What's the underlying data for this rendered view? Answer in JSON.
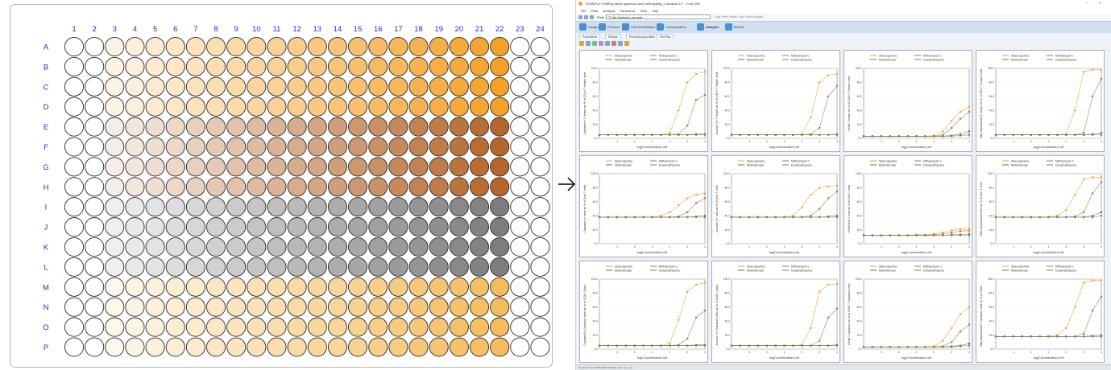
{
  "plate": {
    "columns": [
      "1",
      "2",
      "3",
      "4",
      "5",
      "6",
      "7",
      "8",
      "9",
      "10",
      "11",
      "12",
      "13",
      "14",
      "15",
      "16",
      "17",
      "18",
      "19",
      "20",
      "21",
      "22",
      "23",
      "24"
    ],
    "rows": [
      "A",
      "B",
      "C",
      "D",
      "E",
      "F",
      "G",
      "H",
      "I",
      "J",
      "K",
      "L",
      "M",
      "N",
      "O",
      "P"
    ],
    "blocks": [
      {
        "rows": [
          0,
          3
        ],
        "color": "#f4a128"
      },
      {
        "rows": [
          4,
          7
        ],
        "color": "#b5662b"
      },
      {
        "rows": [
          8,
          11
        ],
        "color": "#7d7d7d"
      },
      {
        "rows": [
          12,
          15
        ],
        "color": "#f4bc5c"
      }
    ],
    "filled_columns": [
      2,
      21
    ]
  },
  "arrow_symbol": "→",
  "app": {
    "title": "EXAMPLE Profiling alpha apoptosis and phenotyping_2 Analysis 11* - ForeCyt®",
    "window_controls": "– □",
    "menu": [
      "File",
      "Plate",
      "Analysis",
      "Panorama",
      "Tools",
      "Help"
    ],
    "plate_label": "Plate",
    "plate_value": "T-Cells treatment_my.mask",
    "plate_links": "Copy Plate Design  Copy Plate Analysis",
    "ribbon": [
      {
        "label": "Design",
        "active": false
      },
      {
        "label": "Protocol",
        "active": false
      },
      {
        "label": "Cell Identification",
        "active": false
      },
      {
        "label": "Compensation",
        "active": false
      },
      {
        "label": "Analysis",
        "active": true
      },
      {
        "label": "Metrics",
        "active": false
      }
    ],
    "subtabs": [
      "Populations",
      "Results",
      "Phenotyping profiles",
      "Plot Reg"
    ],
    "status": "ProcessTimes 1000ms(MN DatSet)    User: my_user"
  },
  "chart_data": {
    "type": "line",
    "note_legend": [
      "Staurosporine",
      "Mithramycin C",
      "Methotrexate",
      "Dexamethasone"
    ],
    "series_colors": [
      "#f5a32a",
      "#c0703a",
      "#7d6a5a",
      "#6a8a50"
    ],
    "xlabel": "log(Concentration) nM",
    "x": [
      -2,
      -1.5,
      -1,
      -0.5,
      0,
      0.5,
      1,
      1.5,
      2,
      2.5,
      3,
      3.5,
      4
    ],
    "xticks": [
      "-1",
      "0",
      "1",
      "2",
      "3",
      "4"
    ],
    "ylim": [
      0,
      100
    ],
    "panels": [
      {
        "ylabel": "Caspase3+ T helper as % of CD4+ T helper cells",
        "yticks": [
          "100.0",
          "80.0",
          "60.0",
          "40.0",
          "20.0",
          "0.0"
        ],
        "series": [
          [
            5,
            5,
            5,
            5,
            5,
            5,
            5,
            5,
            8,
            40,
            80,
            92,
            95
          ],
          [
            5,
            5,
            5,
            5,
            5,
            5,
            5,
            5,
            5,
            6,
            18,
            55,
            62
          ],
          [
            5,
            5,
            5,
            5,
            5,
            5,
            5,
            5,
            5,
            5,
            5,
            6,
            6
          ],
          [
            5,
            5,
            5,
            5,
            5,
            5,
            5,
            5,
            5,
            5,
            5,
            5,
            5
          ]
        ]
      },
      {
        "ylabel": "Annexin V+ T helper as % of CD4+ T helper cells",
        "yticks": [
          "100.0",
          "80.0",
          "60.0",
          "40.0",
          "20.0",
          "0.0"
        ],
        "series": [
          [
            5,
            5,
            5,
            5,
            5,
            5,
            5,
            5,
            6,
            30,
            80,
            90,
            92
          ],
          [
            5,
            5,
            5,
            5,
            5,
            5,
            5,
            5,
            5,
            6,
            15,
            60,
            75
          ],
          [
            5,
            5,
            5,
            5,
            5,
            5,
            5,
            5,
            5,
            5,
            5,
            5,
            6
          ],
          [
            5,
            5,
            5,
            5,
            5,
            5,
            5,
            5,
            5,
            5,
            5,
            5,
            5
          ]
        ]
      },
      {
        "ylabel": "Dead T helper as % of CD4+ T helper cells",
        "yticks": [
          "100.0",
          "80.0",
          "60.0",
          "40.0",
          "20.0",
          "0.0"
        ],
        "series": [
          [
            3,
            3,
            3,
            3,
            3,
            3,
            3,
            3,
            4,
            10,
            25,
            38,
            45
          ],
          [
            3,
            3,
            3,
            3,
            3,
            3,
            3,
            3,
            3,
            5,
            15,
            28,
            38
          ],
          [
            3,
            3,
            3,
            3,
            3,
            3,
            3,
            3,
            3,
            3,
            4,
            6,
            10
          ],
          [
            3,
            3,
            3,
            3,
            3,
            3,
            3,
            3,
            3,
            3,
            3,
            4,
            5
          ]
        ]
      },
      {
        "ylabel": "Mito depolarized T helper as % of CD4+ T helper cells",
        "yticks": [
          "100.0",
          "80.0",
          "60.0",
          "40.0",
          "20.0",
          "0.0"
        ],
        "series": [
          [
            5,
            5,
            5,
            5,
            5,
            5,
            5,
            5,
            6,
            40,
            95,
            98,
            98
          ],
          [
            5,
            5,
            5,
            5,
            5,
            5,
            5,
            5,
            5,
            5,
            8,
            60,
            85
          ],
          [
            5,
            5,
            5,
            5,
            5,
            5,
            5,
            5,
            5,
            5,
            5,
            6,
            8
          ],
          [
            5,
            5,
            5,
            5,
            5,
            5,
            5,
            5,
            5,
            5,
            5,
            5,
            5
          ]
        ]
      },
      {
        "ylabel": "Caspase 3+ cells as % of Non T cells",
        "yticks": [
          "100.0",
          "80.0",
          "60.0",
          "40.0",
          "20.0",
          "0.0"
        ],
        "series": [
          [
            38,
            38,
            38,
            38,
            38,
            38,
            38,
            40,
            45,
            55,
            65,
            70,
            72
          ],
          [
            38,
            38,
            38,
            38,
            38,
            38,
            38,
            38,
            38,
            39,
            45,
            58,
            65
          ],
          [
            38,
            38,
            38,
            38,
            38,
            38,
            38,
            38,
            38,
            38,
            38,
            39,
            40
          ],
          [
            38,
            38,
            38,
            38,
            38,
            38,
            38,
            38,
            38,
            38,
            38,
            38,
            38
          ]
        ]
      },
      {
        "ylabel": "Annexin V+ cells as % of Non T cells",
        "yticks": [
          "100.0",
          "80.0",
          "60.0",
          "40.0",
          "20.0",
          "0.0"
        ],
        "series": [
          [
            38,
            38,
            38,
            38,
            38,
            38,
            38,
            40,
            52,
            70,
            80,
            82,
            83
          ],
          [
            38,
            38,
            38,
            38,
            38,
            38,
            38,
            38,
            38,
            40,
            50,
            65,
            75
          ],
          [
            38,
            38,
            38,
            38,
            38,
            38,
            38,
            38,
            38,
            38,
            38,
            39,
            40
          ],
          [
            38,
            38,
            38,
            38,
            38,
            38,
            38,
            38,
            38,
            38,
            38,
            38,
            38
          ]
        ]
      },
      {
        "ylabel": "Dead Non T cells as % of Non T cells",
        "yticks": [
          "100.0",
          "80.0",
          "60.0",
          "40.0",
          "20.0",
          "0.0"
        ],
        "series": [
          [
            12,
            12,
            12,
            12,
            12,
            12,
            13,
            13,
            14,
            16,
            19,
            21,
            22
          ],
          [
            12,
            12,
            12,
            12,
            12,
            12,
            12,
            12,
            13,
            14,
            16,
            18,
            19
          ],
          [
            12,
            12,
            12,
            12,
            12,
            12,
            12,
            12,
            12,
            12,
            13,
            13,
            14
          ],
          [
            12,
            12,
            12,
            12,
            12,
            12,
            12,
            12,
            12,
            12,
            12,
            12,
            12
          ]
        ]
      },
      {
        "ylabel": "Mito depolarized cells as % of Non T cells",
        "yticks": [
          "100.0",
          "80.0",
          "60.0",
          "40.0",
          "20.0",
          "0.0"
        ],
        "series": [
          [
            38,
            38,
            38,
            38,
            38,
            38,
            38,
            40,
            48,
            70,
            92,
            95,
            95
          ],
          [
            38,
            38,
            38,
            38,
            38,
            38,
            38,
            38,
            38,
            39,
            45,
            72,
            88
          ],
          [
            38,
            38,
            38,
            38,
            38,
            38,
            38,
            38,
            38,
            38,
            38,
            40,
            45
          ],
          [
            38,
            38,
            38,
            38,
            38,
            38,
            38,
            38,
            38,
            38,
            38,
            38,
            40
          ]
        ]
      },
      {
        "ylabel": "Caspase3+ Cytotoxic cells as % of CD8+ Cytot...",
        "yticks": [
          "100.0",
          "80.0",
          "60.0",
          "40.0",
          "20.0",
          "0.0"
        ],
        "series": [
          [
            5,
            5,
            5,
            5,
            5,
            5,
            5,
            5,
            8,
            42,
            82,
            92,
            95
          ],
          [
            5,
            5,
            5,
            5,
            5,
            5,
            5,
            5,
            5,
            6,
            15,
            45,
            55
          ],
          [
            5,
            5,
            5,
            5,
            5,
            5,
            5,
            5,
            5,
            5,
            5,
            6,
            6
          ],
          [
            5,
            5,
            5,
            5,
            5,
            5,
            5,
            5,
            5,
            5,
            5,
            5,
            5
          ]
        ]
      },
      {
        "ylabel": "Annexin V+ Cytotoxic cells as % of CD8+ Cytot...",
        "yticks": [
          "100.0",
          "80.0",
          "60.0",
          "40.0",
          "20.0",
          "0.0"
        ],
        "series": [
          [
            5,
            5,
            5,
            5,
            5,
            5,
            5,
            5,
            6,
            30,
            82,
            92,
            93
          ],
          [
            5,
            5,
            5,
            5,
            5,
            5,
            5,
            5,
            5,
            5,
            12,
            45,
            58
          ],
          [
            5,
            5,
            5,
            5,
            5,
            5,
            5,
            5,
            5,
            5,
            5,
            5,
            6
          ],
          [
            5,
            5,
            5,
            5,
            5,
            5,
            5,
            5,
            5,
            5,
            5,
            5,
            5
          ]
        ]
      },
      {
        "ylabel": "Dead T cytotoxic as % of CD8+ T cytotoxic cells",
        "yticks": [
          "100.0",
          "80.0",
          "60.0",
          "40.0",
          "20.0",
          "0.0"
        ],
        "series": [
          [
            3,
            3,
            3,
            3,
            3,
            3,
            3,
            3,
            4,
            12,
            30,
            50,
            60
          ],
          [
            3,
            3,
            3,
            3,
            3,
            3,
            3,
            3,
            3,
            4,
            10,
            25,
            35
          ],
          [
            3,
            3,
            3,
            3,
            3,
            3,
            3,
            3,
            3,
            3,
            4,
            5,
            8
          ],
          [
            3,
            3,
            3,
            3,
            3,
            3,
            3,
            3,
            3,
            3,
            3,
            4,
            5
          ]
        ]
      },
      {
        "ylabel": "Mito depolarized T cytotoxic cells as % of CD8+ ...",
        "yticks": [
          "100.0",
          "80.0",
          "60.0",
          "40.0",
          "20.0",
          "0.0"
        ],
        "series": [
          [
            18,
            18,
            18,
            18,
            18,
            18,
            18,
            20,
            30,
            60,
            95,
            98,
            98
          ],
          [
            18,
            18,
            18,
            18,
            18,
            18,
            18,
            18,
            18,
            18,
            22,
            55,
            75
          ],
          [
            18,
            18,
            18,
            18,
            18,
            18,
            18,
            18,
            18,
            18,
            18,
            19,
            20
          ],
          [
            18,
            18,
            18,
            18,
            18,
            18,
            18,
            18,
            18,
            18,
            18,
            18,
            18
          ]
        ]
      }
    ]
  }
}
